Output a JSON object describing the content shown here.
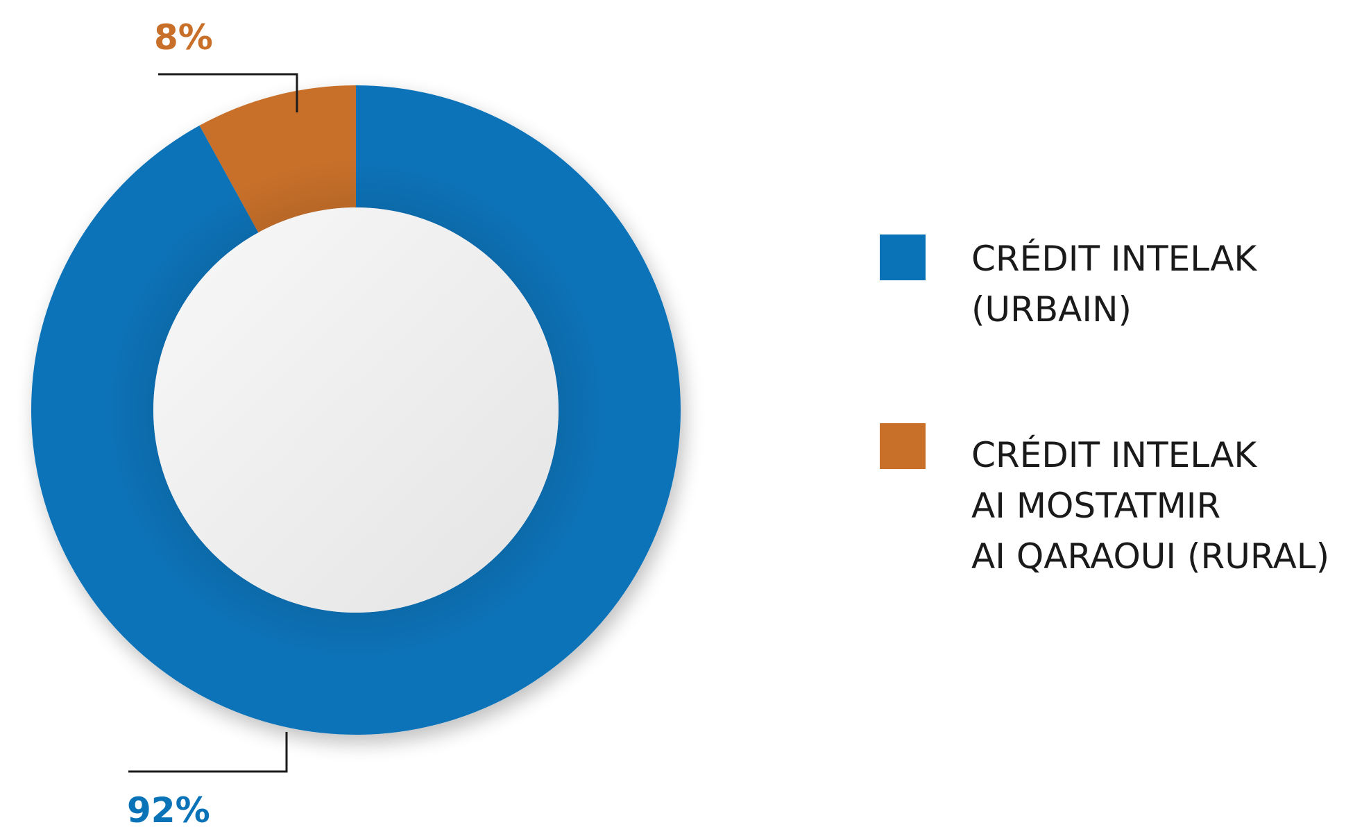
{
  "chart_data": {
    "type": "pie",
    "variant": "donut",
    "categories": [
      "CRÉDIT INTELAK (URBAIN)",
      "CRÉDIT INTELAK AI MOSTATMIR AI QARAOUI (RURAL)"
    ],
    "series": [
      {
        "values": [
          92,
          8
        ]
      }
    ],
    "data_labels": [
      "92%",
      "8%"
    ],
    "colors": [
      "#0a73b8",
      "#c8702a"
    ],
    "legend": {
      "placement": "right",
      "entries": [
        {
          "lines": [
            "CRÉDIT INTELAK",
            "(URBAIN)"
          ],
          "color": "#0a73b8"
        },
        {
          "lines": [
            "CRÉDIT INTELAK",
            "AI MOSTATMIR",
            "AI QARAOUI (RURAL)"
          ],
          "color": "#c8702a"
        }
      ]
    }
  },
  "colors": {
    "legend_text": "#1a1a1a",
    "leader_line": "#1a1a1a",
    "label_92": "#0a73b8",
    "label_8": "#c8702a"
  }
}
